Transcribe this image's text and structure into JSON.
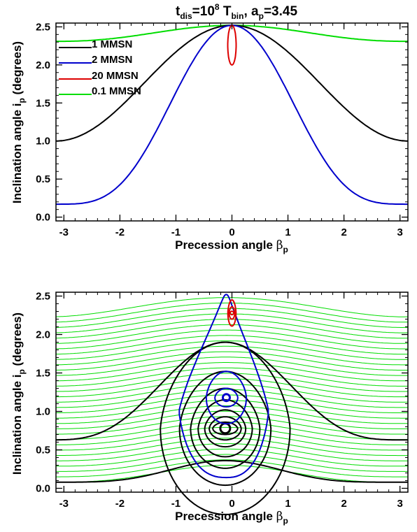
{
  "chart_data": [
    {
      "type": "line",
      "title": {
        "t": "t",
        "t_sub": "dis",
        "mid": "=10",
        "sup": "8",
        "T": " T",
        "T_sub": "bin",
        "tail": ", a",
        "a_sub": "p",
        "end": "=3.45"
      },
      "xlabel": {
        "main": "Precession angle ",
        "greek": "β",
        "sub": "p"
      },
      "ylabel": {
        "main": "Inclination angle i",
        "sub": "p",
        "tail": " (degrees)"
      },
      "xlim": [
        -3.14159,
        3.14159
      ],
      "ylim": [
        -0.05,
        2.55
      ],
      "xticks": [
        "-3",
        "-2",
        "-1",
        "0",
        "1",
        "2",
        "3"
      ],
      "yticks": [
        "0.0",
        "0.5",
        "1.0",
        "1.5",
        "2.0",
        "2.5"
      ],
      "legend_position": "top-left",
      "series": [
        {
          "name": "1 MMSN",
          "color": "#000000",
          "note": "i(beta) from 2.5 at beta=0 to 1.0 at beta=±pi",
          "points": [
            [
              -3.14,
              1.0
            ],
            [
              -2.5,
              1.15
            ],
            [
              -2.0,
              1.38
            ],
            [
              -1.5,
              1.7
            ],
            [
              -1.0,
              2.03
            ],
            [
              -0.5,
              2.35
            ],
            [
              0.0,
              2.52
            ],
            [
              0.5,
              2.35
            ],
            [
              1.0,
              2.03
            ],
            [
              1.5,
              1.7
            ],
            [
              2.0,
              1.38
            ],
            [
              2.5,
              1.15
            ],
            [
              3.14,
              1.0
            ]
          ]
        },
        {
          "name": "2 MMSN",
          "color": "#0000cc",
          "points": [
            [
              -3.14,
              0.17
            ],
            [
              -2.5,
              0.25
            ],
            [
              -2.0,
              0.42
            ],
            [
              -1.5,
              0.78
            ],
            [
              -1.0,
              1.38
            ],
            [
              -0.5,
              2.1
            ],
            [
              0.0,
              2.52
            ],
            [
              0.5,
              2.1
            ],
            [
              1.0,
              1.38
            ],
            [
              1.5,
              0.78
            ],
            [
              2.0,
              0.42
            ],
            [
              2.5,
              0.25
            ],
            [
              3.14,
              0.17
            ]
          ]
        },
        {
          "name": "20 MMSN",
          "color": "#dd0000",
          "closed": true,
          "points": [
            [
              0.0,
              2.52
            ],
            [
              0.06,
              2.42
            ],
            [
              0.08,
              2.26
            ],
            [
              0.06,
              2.1
            ],
            [
              0.0,
              2.0
            ],
            [
              -0.06,
              2.1
            ],
            [
              -0.08,
              2.26
            ],
            [
              -0.06,
              2.42
            ],
            [
              0.0,
              2.52
            ]
          ]
        },
        {
          "name": "0.1 MMSN",
          "color": "#00dd00",
          "points": [
            [
              -3.14,
              2.31
            ],
            [
              -2.0,
              2.36
            ],
            [
              -1.0,
              2.45
            ],
            [
              0.0,
              2.52
            ],
            [
              1.0,
              2.45
            ],
            [
              2.0,
              2.36
            ],
            [
              3.14,
              2.31
            ]
          ]
        }
      ]
    },
    {
      "type": "line",
      "xlabel": {
        "main": "Precession angle ",
        "greek": "β",
        "sub": "p"
      },
      "ylabel": {
        "main": "Inclination angle i",
        "sub": "p",
        "tail": " (degrees)"
      },
      "xlim": [
        -3.14159,
        3.14159
      ],
      "ylim": [
        -0.05,
        2.55
      ],
      "xticks": [
        "-3",
        "-2",
        "-1",
        "0",
        "1",
        "2",
        "3"
      ],
      "yticks": [
        "0.0",
        "0.5",
        "1.0",
        "1.5",
        "2.0",
        "2.5"
      ],
      "families": {
        "green_open_curves": {
          "color": "#00dd00",
          "count": 32,
          "i_at_0": [
            0.3,
            2.48
          ],
          "i_at_pi": [
            0.08,
            2.23
          ]
        },
        "black_closed_orbits": {
          "color": "#000000",
          "center": [
            -0.12,
            0.78
          ],
          "i_at_pi": 0.63,
          "loop_tops": [
            1.9,
            1.52,
            1.3,
            1.15,
            1.02,
            0.93,
            0.86
          ]
        },
        "blue_closed_orbits": {
          "color": "#0000cc",
          "center": [
            -0.1,
            1.18
          ],
          "loop_tops": [
            2.52,
            1.52,
            1.3
          ]
        },
        "red_closed_orbits": {
          "color": "#dd0000",
          "center": [
            0.0,
            2.28
          ],
          "loop_tops": [
            2.45,
            2.36
          ]
        }
      }
    }
  ]
}
